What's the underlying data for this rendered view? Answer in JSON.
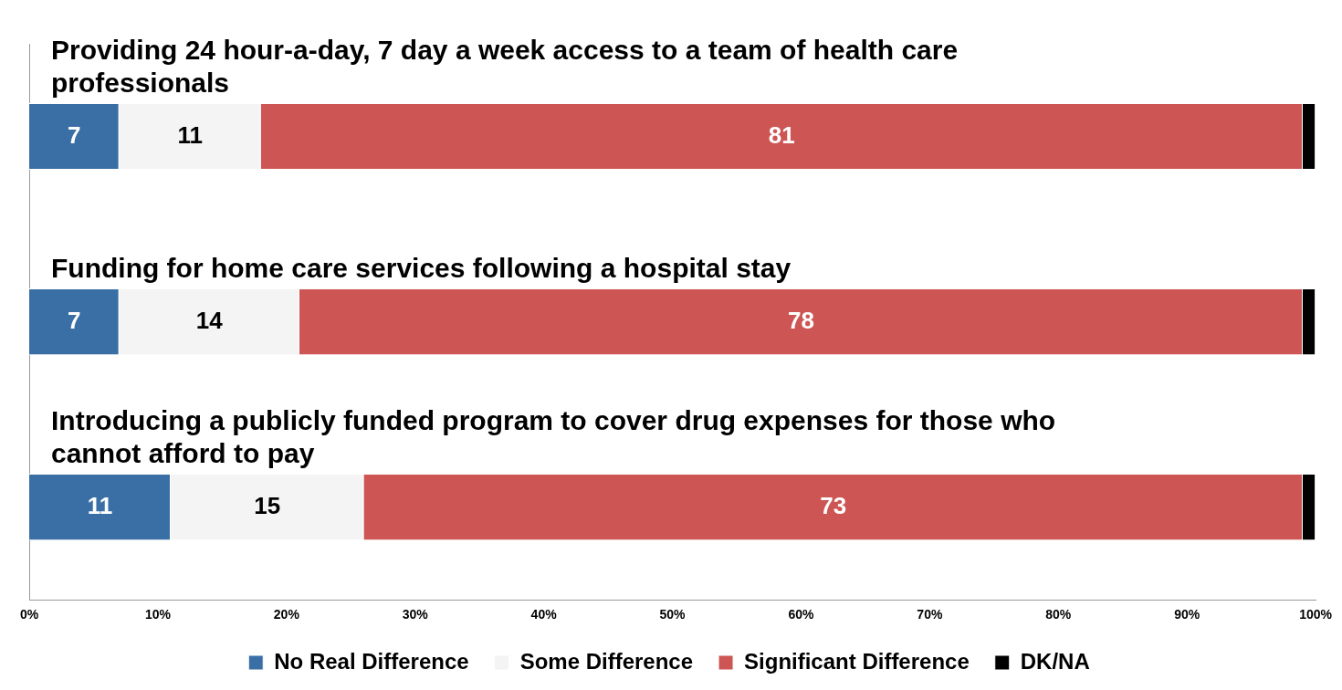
{
  "chart_data": {
    "type": "bar",
    "orientation": "horizontal",
    "stacked": true,
    "tick_labels": "x",
    "grid": false,
    "legend": "bottom",
    "categories": [
      "Providing 24 hour-a-day, 7 day a week access to a team of health care professionals",
      "Funding for home care services following a hospital stay",
      "Introducing a publicly funded program to cover drug expenses for those who cannot afford to pay"
    ],
    "series": [
      {
        "name": "No Real Difference",
        "color": "#3a6fa5",
        "values": [
          7,
          7,
          11
        ],
        "value_labels": [
          "7",
          "7",
          "11"
        ]
      },
      {
        "name": "Some Difference",
        "color": "#f4f4f4",
        "values": [
          11,
          14,
          15
        ],
        "value_labels": [
          "11",
          "14",
          "15"
        ]
      },
      {
        "name": "Significant Difference",
        "color": "#cd5553",
        "values": [
          81,
          78,
          73
        ],
        "value_labels": [
          "81",
          "78",
          "73"
        ]
      },
      {
        "name": "DK/NA",
        "color": "#000000",
        "values": [
          1,
          1,
          1
        ],
        "value_labels": [
          null,
          null,
          null
        ]
      }
    ],
    "xlim": [
      0,
      100
    ],
    "xticks": [
      {
        "value": 0,
        "label": "0%"
      },
      {
        "value": 10,
        "label": "10%"
      },
      {
        "value": 20,
        "label": "20%"
      },
      {
        "value": 30,
        "label": "30%"
      },
      {
        "value": 40,
        "label": "40%"
      },
      {
        "value": 50,
        "label": "50%"
      },
      {
        "value": 60,
        "label": "60%"
      },
      {
        "value": 70,
        "label": "70%"
      },
      {
        "value": 80,
        "label": "80%"
      },
      {
        "value": 90,
        "label": "90%"
      },
      {
        "value": 100,
        "label": "100%"
      }
    ]
  }
}
